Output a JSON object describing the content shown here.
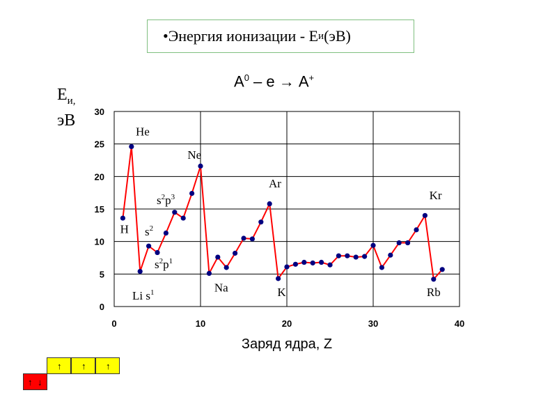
{
  "title": {
    "prefix": "•Энергия ионизации - Е",
    "sub": "и",
    "suffix": " (эВ)"
  },
  "reaction": {
    "a": "А",
    "sup0": "0",
    "mid": " – е → А",
    "supplus": "+"
  },
  "ylabel": {
    "line1_main": "Е",
    "line1_sub": "и,",
    "line2": "эВ"
  },
  "chart_data": {
    "type": "line",
    "xlabel": "Заряд ядра, Z",
    "xlim": [
      0,
      40
    ],
    "ylim": [
      0,
      30
    ],
    "xticks": [
      "0",
      "10",
      "20",
      "30",
      "40"
    ],
    "yticks": [
      "0",
      "5",
      "10",
      "15",
      "20",
      "25",
      "30"
    ],
    "grid": true,
    "line_color": "#ff0000",
    "marker_color": "#000080",
    "x": [
      1,
      2,
      3,
      4,
      5,
      6,
      7,
      8,
      9,
      10,
      11,
      12,
      13,
      14,
      15,
      16,
      17,
      18,
      19,
      20,
      21,
      22,
      23,
      24,
      25,
      26,
      27,
      28,
      29,
      30,
      31,
      32,
      33,
      34,
      35,
      36,
      37,
      38
    ],
    "y": [
      13.6,
      24.6,
      5.4,
      9.3,
      8.3,
      11.3,
      14.5,
      13.6,
      17.4,
      21.6,
      5.1,
      7.6,
      6.0,
      8.2,
      10.5,
      10.4,
      13.0,
      15.8,
      4.3,
      6.1,
      6.5,
      6.8,
      6.7,
      6.8,
      6.4,
      7.8,
      7.8,
      7.6,
      7.7,
      9.4,
      6.0,
      7.9,
      9.8,
      9.8,
      11.8,
      14.0,
      4.2,
      5.7
    ],
    "annotations": [
      {
        "text": "He",
        "x": 2.5,
        "y": 26.3
      },
      {
        "text": "Ne",
        "x": 8.5,
        "y": 22.7
      },
      {
        "text": "Ar",
        "x": 17.9,
        "y": 18.3
      },
      {
        "text": "Kr",
        "x": 36.5,
        "y": 16.5
      },
      {
        "text": "H",
        "x": 0.7,
        "y": 11.3
      },
      {
        "text": "Na",
        "x": 11.6,
        "y": 2.3
      },
      {
        "text": "K",
        "x": 18.9,
        "y": 1.6
      },
      {
        "text": "Rb",
        "x": 36.2,
        "y": 1.6
      }
    ]
  },
  "config_labels": {
    "s2p3": {
      "b1": "s",
      "s1": "2",
      "b2": "p",
      "s2": "3"
    },
    "s2": {
      "b1": "s",
      "s1": "2"
    },
    "s2p1": {
      "b1": "s",
      "s1": "2",
      "b2": "p",
      "s2": "1"
    },
    "lis1": {
      "b1": "Li s",
      "s1": "1"
    }
  },
  "orbitals": {
    "p_arrow": "↑",
    "s_up": "↑",
    "s_down": "↓"
  }
}
